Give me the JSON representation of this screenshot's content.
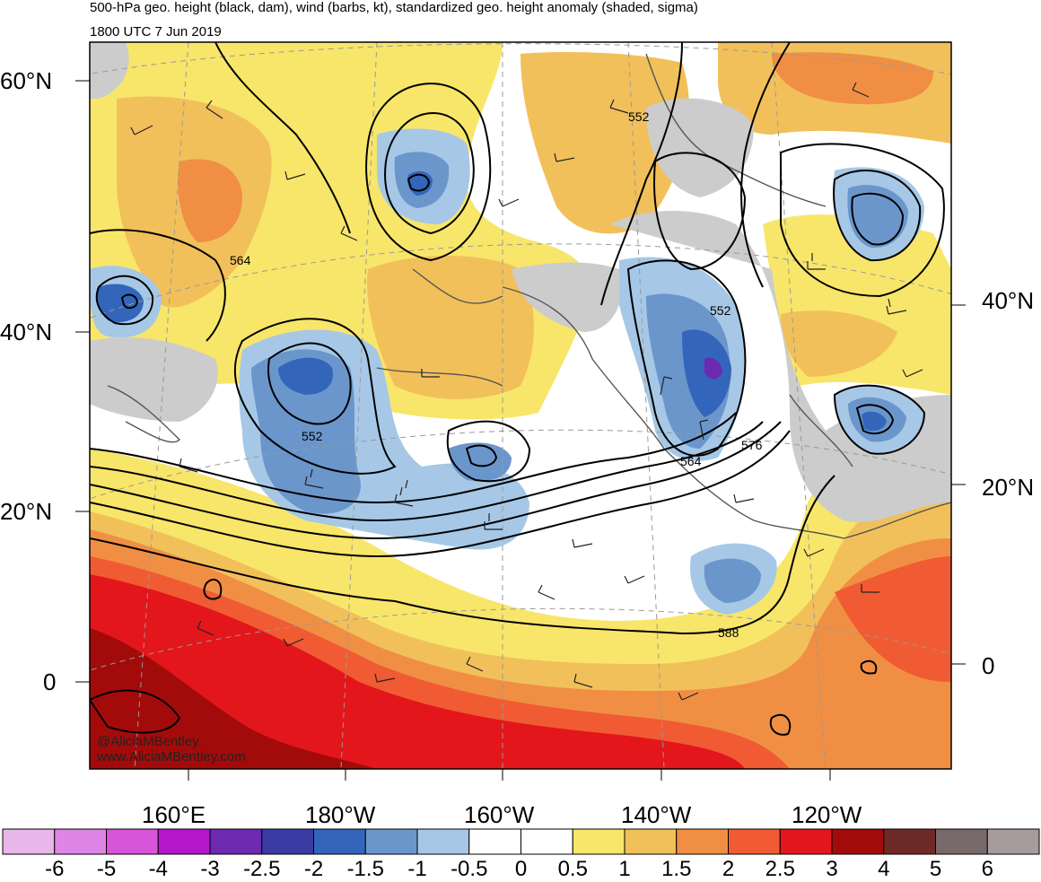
{
  "title_line1": "500-hPa geo. height (black, dam), wind (barbs, kt), standardized geo. height anomaly (shaded, sigma)",
  "title_line2": "1800 UTC 7 Jun 2019",
  "credit_handle": "@AliciaMBentley",
  "credit_url": "www.AliciaMBentley.com",
  "lat_labels_left": [
    "60°N",
    "40°N",
    "20°N",
    "0"
  ],
  "lat_labels_right": [
    "40°N",
    "20°N",
    "0"
  ],
  "lon_labels": [
    "160°E",
    "180°W",
    "160°W",
    "140°W",
    "120°W"
  ],
  "contour_labels": [
    "552",
    "564",
    "552",
    "552",
    "564",
    "576",
    "588"
  ],
  "colorbar": {
    "labels": [
      "-6",
      "-5",
      "-4",
      "-3",
      "-2.5",
      "-2",
      "-1.5",
      "-1",
      "-0.5",
      "0",
      "0.5",
      "1",
      "1.5",
      "2",
      "2.5",
      "3",
      "4",
      "5",
      "6"
    ],
    "colors": [
      "#e8b6e8",
      "#e085e8",
      "#d854d8",
      "#b317c9",
      "#6b2ab0",
      "#3b3ba3",
      "#3366bb",
      "#6b96cc",
      "#a6c8e6",
      "#ffffff",
      "#ffffff",
      "#f8e66a",
      "#f2c05a",
      "#f08f44",
      "#f05b33",
      "#e3161b",
      "#a30b0b",
      "#6e2a27",
      "#786a6a",
      "#a89b9b"
    ]
  }
}
